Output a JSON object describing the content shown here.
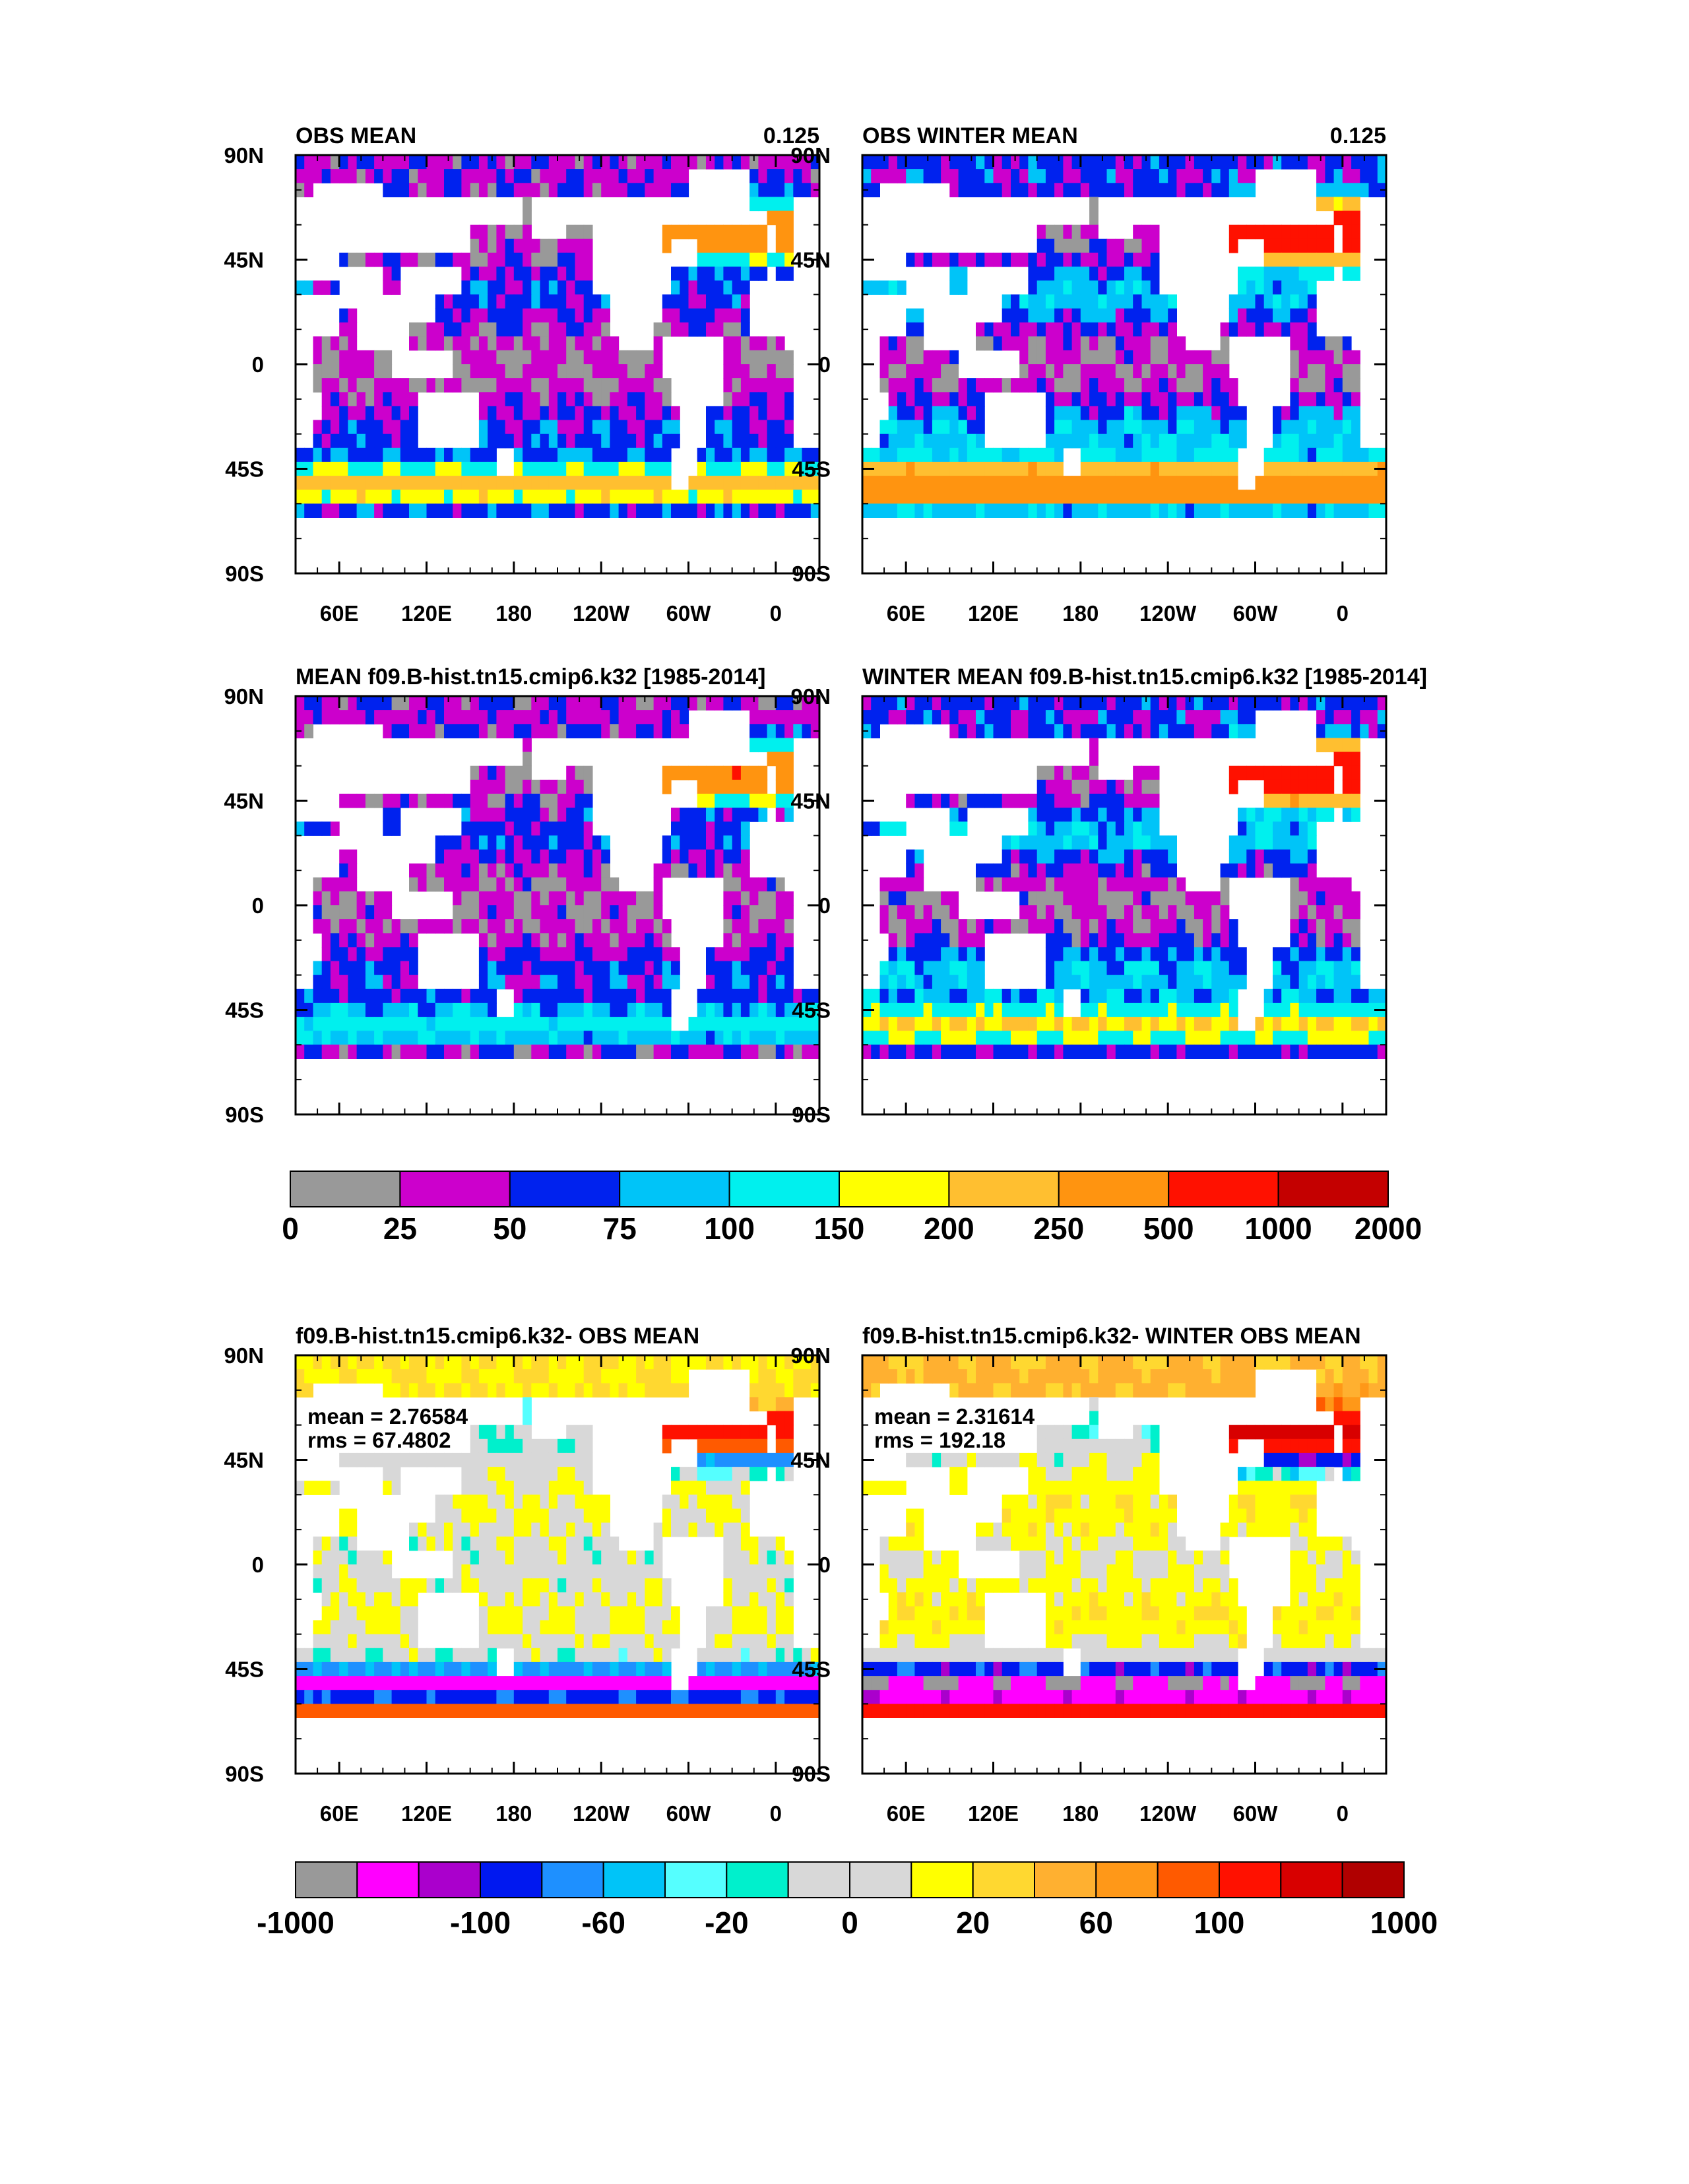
{
  "figure": {
    "description_labels": "Ocean map panels with colorbars"
  },
  "colors": {
    "land": "#ffffff",
    "frame": "#000000"
  },
  "axes": {
    "y_ticks": [
      "90N",
      "45N",
      "0",
      "45S",
      "90S"
    ],
    "x_ticks": [
      "60E",
      "120E",
      "180",
      "120W",
      "60W",
      "0"
    ]
  },
  "panels": [
    {
      "id": "obs-mean",
      "title_left": "OBS MEAN",
      "title_right": "0.125",
      "palette": "abs",
      "field": "obs",
      "show_x": true
    },
    {
      "id": "obs-winter-mean",
      "title_left": "OBS WINTER MEAN",
      "title_right": "0.125",
      "palette": "abs",
      "field": "obsw",
      "show_x": true
    },
    {
      "id": "model-mean",
      "title_left": "MEAN f09.B-hist.tn15.cmip6.k32 [1985-2014]",
      "title_right": "",
      "palette": "abs",
      "field": "model",
      "show_x": false
    },
    {
      "id": "model-winter-mean",
      "title_left": "WINTER MEAN f09.B-hist.tn15.cmip6.k32 [1985-2014]",
      "title_right": "",
      "palette": "abs",
      "field": "modelw",
      "show_x": false
    },
    {
      "id": "diff-mean",
      "title_left": "f09.B-hist.tn15.cmip6.k32- OBS MEAN",
      "title_right": "",
      "palette": "diff",
      "field": "diff",
      "show_x": true,
      "mean_label": "mean = 2.76584",
      "rms_label": "rms = 67.4802"
    },
    {
      "id": "diff-winter-mean",
      "title_left": "f09.B-hist.tn15.cmip6.k32- WINTER OBS MEAN",
      "title_right": "",
      "palette": "diff",
      "field": "diffw",
      "show_x": true,
      "mean_label": "mean = 2.31614",
      "rms_label": "rms = 192.18"
    }
  ],
  "colorbars": [
    {
      "id": "abs-colorbar",
      "colors": [
        "#999999",
        "#cc00cc",
        "#0022ee",
        "#00c4f8",
        "#00f0ee",
        "#ffff00",
        "#ffbf30",
        "#ff9410",
        "#ff1100",
        "#c40000"
      ],
      "labels": [
        "0",
        "25",
        "50",
        "75",
        "100",
        "150",
        "200",
        "250",
        "500",
        "1000",
        "2000"
      ]
    },
    {
      "id": "diff-colorbar",
      "colors": [
        "#999999",
        "#ff00ff",
        "#aa00cc",
        "#0018f0",
        "#1e90ff",
        "#00c4f8",
        "#55ffff",
        "#00f0cc",
        "#d8d8d8",
        "#d8d8d8",
        "#ffff00",
        "#ffd830",
        "#ffb030",
        "#ff9818",
        "#ff5a00",
        "#ff1100",
        "#d80000",
        "#b00000"
      ],
      "labels": [
        "-1000",
        "-100",
        "-60",
        "-20",
        "0",
        "20",
        "60",
        "100",
        "1000"
      ]
    }
  ],
  "chart_data": [
    {
      "type": "heatmap",
      "title": "OBS MEAN",
      "annotation": "0.125",
      "x_ticks": [
        "60E",
        "120E",
        "180",
        "120W",
        "60W",
        "0"
      ],
      "y_ticks": [
        "90N",
        "45N",
        "0",
        "45S",
        "90S"
      ],
      "lon_range": [
        30,
        390
      ],
      "lat_range": [
        -90,
        90
      ],
      "levels": [
        0,
        25,
        50,
        75,
        100,
        150,
        200,
        250,
        500,
        1000,
        2000
      ],
      "approx_regional_values": {
        "southern_ocean_45_60S": 225,
        "north_atlantic": 400,
        "subtropical_gyres": 60,
        "tropics": 37,
        "arctic": 15
      }
    },
    {
      "type": "heatmap",
      "title": "OBS WINTER MEAN",
      "annotation": "0.125",
      "x_ticks": [
        "60E",
        "120E",
        "180",
        "120W",
        "60W",
        "0"
      ],
      "y_ticks": [
        "90N",
        "45N",
        "0",
        "45S",
        "90S"
      ],
      "lon_range": [
        30,
        390
      ],
      "lat_range": [
        -90,
        90
      ],
      "levels": [
        0,
        25,
        50,
        75,
        100,
        150,
        200,
        250,
        500,
        1000,
        2000
      ],
      "approx_regional_values": {
        "southern_ocean_45_60S": 400,
        "north_atlantic": 800,
        "subtropical_gyres": 110,
        "tropics": 40,
        "arctic": 30
      }
    },
    {
      "type": "heatmap",
      "title": "MEAN f09.B-hist.tn15.cmip6.k32 [1985-2014]",
      "x_ticks": [
        "60E",
        "120E",
        "180",
        "120W",
        "60W",
        "0"
      ],
      "y_ticks": [
        "90N",
        "45N",
        "0",
        "45S",
        "90S"
      ],
      "lon_range": [
        30,
        390
      ],
      "lat_range": [
        -90,
        90
      ],
      "levels": [
        0,
        25,
        50,
        75,
        100,
        150,
        200,
        250,
        500,
        1000,
        2000
      ],
      "approx_regional_values": {
        "southern_ocean_45_60S": 90,
        "north_atlantic": 400,
        "subtropical_gyres": 60,
        "tropics": 37,
        "arctic": 30
      }
    },
    {
      "type": "heatmap",
      "title": "WINTER MEAN f09.B-hist.tn15.cmip6.k32 [1985-2014]",
      "x_ticks": [
        "60E",
        "120E",
        "180",
        "120W",
        "60W",
        "0"
      ],
      "y_ticks": [
        "90N",
        "45N",
        "0",
        "45S",
        "90S"
      ],
      "lon_range": [
        30,
        390
      ],
      "lat_range": [
        -90,
        90
      ],
      "levels": [
        0,
        25,
        50,
        75,
        100,
        150,
        200,
        250,
        500,
        1000,
        2000
      ],
      "approx_regional_values": {
        "southern_ocean_45_60S": 220,
        "north_atlantic": 1200,
        "subtropical_gyres": 125,
        "tropics": 60,
        "arctic": 60
      }
    },
    {
      "type": "heatmap",
      "title": "f09.B-hist.tn15.cmip6.k32- OBS MEAN",
      "x_ticks": [
        "60E",
        "120E",
        "180",
        "120W",
        "60W",
        "0"
      ],
      "y_ticks": [
        "90N",
        "45N",
        "0",
        "45S",
        "90S"
      ],
      "lon_range": [
        30,
        390
      ],
      "lat_range": [
        -90,
        90
      ],
      "levels": [
        -1000,
        -100,
        -60,
        -20,
        0,
        20,
        60,
        100,
        1000
      ],
      "mean": 2.76584,
      "rms": 67.4802,
      "approx_regional_values": {
        "southern_ocean_50S": -120,
        "north_atlantic": 250,
        "subtropics": 15,
        "arctic": 30
      }
    },
    {
      "type": "heatmap",
      "title": "f09.B-hist.tn15.cmip6.k32- WINTER OBS MEAN",
      "x_ticks": [
        "60E",
        "120E",
        "180",
        "120W",
        "60W",
        "0"
      ],
      "y_ticks": [
        "90N",
        "45N",
        "0",
        "45S",
        "90S"
      ],
      "lon_range": [
        30,
        390
      ],
      "lat_range": [
        -90,
        90
      ],
      "levels": [
        -1000,
        -100,
        -60,
        -20,
        0,
        20,
        60,
        100,
        1000
      ],
      "mean": 2.31614,
      "rms": 192.18,
      "approx_regional_values": {
        "southern_ocean_50S": -150,
        "north_atlantic": 400,
        "subtropics": 40,
        "arctic": 40
      }
    }
  ]
}
